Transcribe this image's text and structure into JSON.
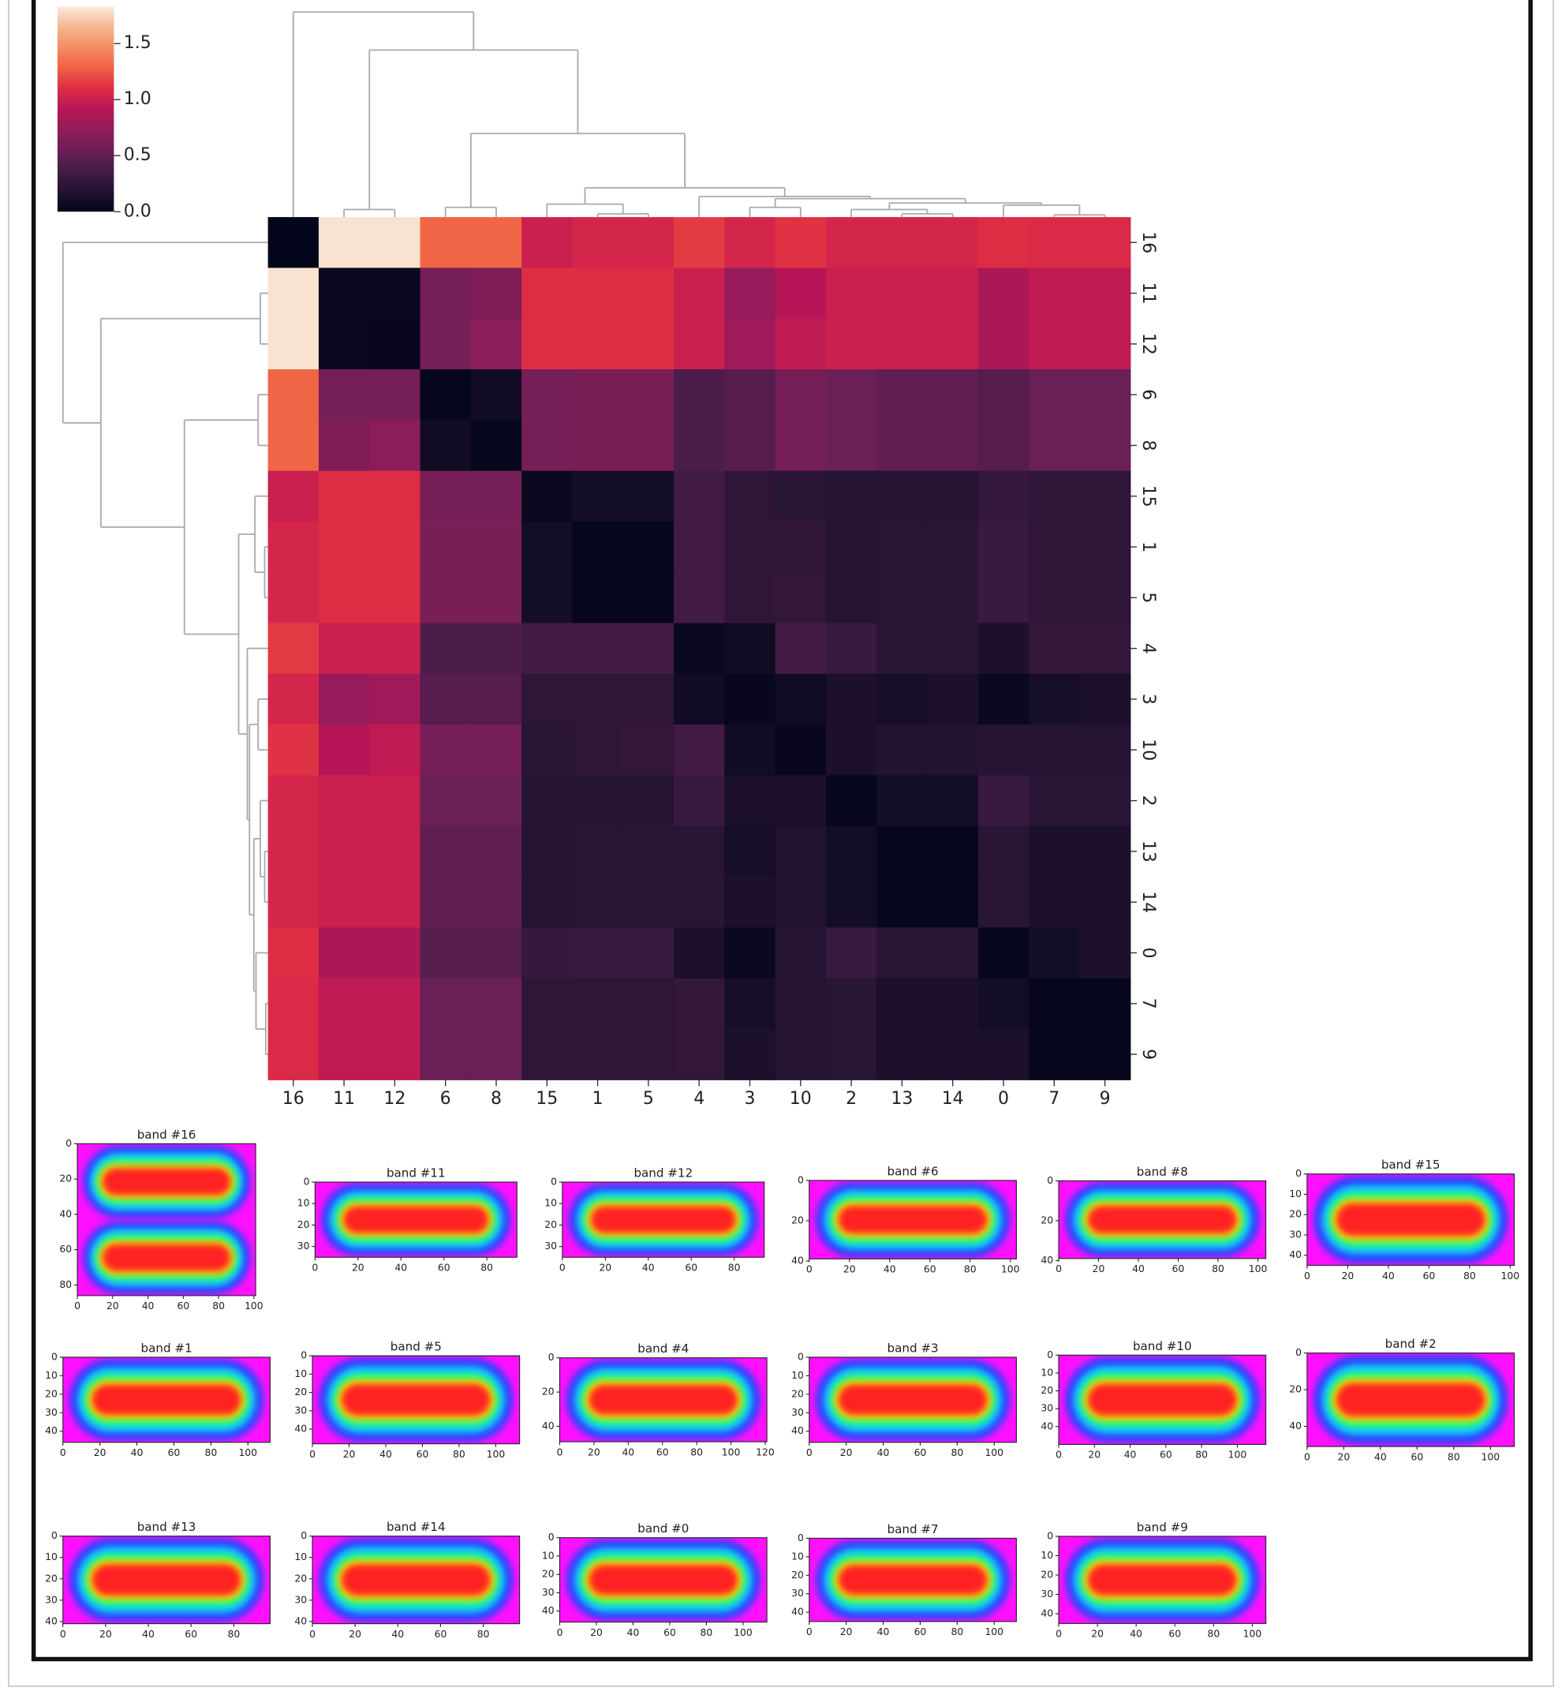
{
  "chart_data": [
    {
      "type": "heatmap",
      "colormap": "rocket",
      "row_labels": [
        "16",
        "11",
        "12",
        "6",
        "8",
        "15",
        "1",
        "5",
        "4",
        "3",
        "10",
        "2",
        "13",
        "14",
        "0",
        "7",
        "9"
      ],
      "col_labels": [
        "16",
        "11",
        "12",
        "6",
        "8",
        "15",
        "1",
        "5",
        "4",
        "3",
        "10",
        "2",
        "13",
        "14",
        "0",
        "7",
        "9"
      ],
      "values": [
        [
          0.0,
          1.8,
          1.8,
          1.3,
          1.3,
          1.0,
          1.05,
          1.05,
          1.15,
          1.05,
          1.12,
          1.05,
          1.05,
          1.05,
          1.1,
          1.08,
          1.08
        ],
        [
          1.8,
          0.05,
          0.05,
          0.6,
          0.65,
          1.1,
          1.1,
          1.1,
          1.0,
          0.75,
          0.9,
          1.0,
          1.0,
          1.0,
          0.85,
          0.95,
          0.95
        ],
        [
          1.8,
          0.05,
          0.03,
          0.6,
          0.7,
          1.1,
          1.1,
          1.1,
          1.0,
          0.8,
          0.95,
          1.0,
          1.0,
          1.0,
          0.85,
          0.95,
          0.95
        ],
        [
          1.3,
          0.6,
          0.6,
          0.02,
          0.08,
          0.6,
          0.62,
          0.62,
          0.4,
          0.45,
          0.6,
          0.55,
          0.5,
          0.5,
          0.45,
          0.55,
          0.55
        ],
        [
          1.3,
          0.65,
          0.7,
          0.08,
          0.02,
          0.6,
          0.62,
          0.62,
          0.4,
          0.45,
          0.6,
          0.55,
          0.5,
          0.5,
          0.45,
          0.55,
          0.55
        ],
        [
          1.0,
          1.1,
          1.1,
          0.6,
          0.6,
          0.05,
          0.1,
          0.1,
          0.35,
          0.25,
          0.22,
          0.2,
          0.2,
          0.2,
          0.28,
          0.25,
          0.25
        ],
        [
          1.05,
          1.1,
          1.1,
          0.62,
          0.62,
          0.1,
          0.02,
          0.02,
          0.35,
          0.25,
          0.25,
          0.2,
          0.22,
          0.22,
          0.3,
          0.25,
          0.25
        ],
        [
          1.05,
          1.1,
          1.1,
          0.62,
          0.62,
          0.1,
          0.02,
          0.02,
          0.35,
          0.25,
          0.27,
          0.2,
          0.22,
          0.22,
          0.3,
          0.25,
          0.25
        ],
        [
          1.15,
          1.0,
          1.0,
          0.4,
          0.4,
          0.35,
          0.35,
          0.35,
          0.05,
          0.08,
          0.35,
          0.3,
          0.22,
          0.22,
          0.15,
          0.27,
          0.27
        ],
        [
          1.05,
          0.75,
          0.8,
          0.45,
          0.45,
          0.25,
          0.25,
          0.25,
          0.08,
          0.03,
          0.08,
          0.15,
          0.12,
          0.15,
          0.05,
          0.12,
          0.15
        ],
        [
          1.12,
          0.9,
          0.95,
          0.6,
          0.6,
          0.22,
          0.25,
          0.27,
          0.35,
          0.08,
          0.03,
          0.15,
          0.18,
          0.18,
          0.2,
          0.2,
          0.2
        ],
        [
          1.05,
          1.0,
          1.0,
          0.55,
          0.55,
          0.2,
          0.2,
          0.2,
          0.3,
          0.15,
          0.15,
          0.02,
          0.1,
          0.1,
          0.3,
          0.22,
          0.22
        ],
        [
          1.05,
          1.0,
          1.0,
          0.5,
          0.5,
          0.2,
          0.22,
          0.22,
          0.22,
          0.12,
          0.18,
          0.1,
          0.02,
          0.02,
          0.22,
          0.15,
          0.15
        ],
        [
          1.05,
          1.0,
          1.0,
          0.5,
          0.5,
          0.2,
          0.22,
          0.22,
          0.22,
          0.15,
          0.18,
          0.1,
          0.02,
          0.02,
          0.22,
          0.15,
          0.15
        ],
        [
          1.1,
          0.85,
          0.85,
          0.45,
          0.45,
          0.28,
          0.3,
          0.3,
          0.15,
          0.05,
          0.2,
          0.3,
          0.22,
          0.22,
          0.02,
          0.1,
          0.15
        ],
        [
          1.08,
          0.95,
          0.95,
          0.55,
          0.55,
          0.25,
          0.25,
          0.25,
          0.27,
          0.12,
          0.2,
          0.22,
          0.15,
          0.15,
          0.1,
          0.02,
          0.02
        ],
        [
          1.08,
          0.95,
          0.95,
          0.55,
          0.55,
          0.25,
          0.25,
          0.25,
          0.27,
          0.15,
          0.2,
          0.22,
          0.15,
          0.15,
          0.15,
          0.02,
          0.02
        ]
      ],
      "colorbar": {
        "ylim": [
          0,
          1.83
        ],
        "yticks": [
          {
            "value": 0,
            "label": "0.0"
          },
          {
            "value": 0.5,
            "label": "0.5"
          },
          {
            "value": 1,
            "label": "1.0"
          },
          {
            "value": 1.5,
            "label": "1.5"
          }
        ]
      }
    },
    {
      "type": "image",
      "title": "band #16",
      "xlim": [
        0,
        101
      ],
      "ylim": [
        86,
        0
      ],
      "xticks": [
        0,
        20,
        40,
        60,
        80,
        100
      ],
      "yticks": [
        0,
        20,
        40,
        60,
        80
      ]
    },
    {
      "type": "image",
      "title": "band #11",
      "xlim": [
        0,
        94
      ],
      "ylim": [
        35,
        0
      ],
      "xticks": [
        0,
        20,
        40,
        60,
        80
      ],
      "yticks": [
        0,
        10,
        20,
        30
      ]
    },
    {
      "type": "image",
      "title": "band #12",
      "xlim": [
        0,
        94
      ],
      "ylim": [
        35,
        0
      ],
      "xticks": [
        0,
        20,
        40,
        60,
        80
      ],
      "yticks": [
        0,
        10,
        20,
        30
      ]
    },
    {
      "type": "image",
      "title": "band #6",
      "xlim": [
        0,
        103
      ],
      "ylim": [
        39,
        0
      ],
      "xticks": [
        0,
        20,
        40,
        60,
        80,
        100
      ],
      "yticks": [
        0,
        20,
        40
      ]
    },
    {
      "type": "image",
      "title": "band #8",
      "xlim": [
        0,
        104
      ],
      "ylim": [
        39,
        0
      ],
      "xticks": [
        0,
        20,
        40,
        60,
        80,
        100
      ],
      "yticks": [
        0,
        20,
        40
      ]
    },
    {
      "type": "image",
      "title": "band #15",
      "xlim": [
        0,
        102
      ],
      "ylim": [
        45,
        0
      ],
      "xticks": [
        0,
        20,
        40,
        60,
        80,
        100
      ],
      "yticks": [
        0,
        10,
        20,
        30,
        40
      ]
    },
    {
      "type": "image",
      "title": "band #1",
      "xlim": [
        0,
        112
      ],
      "ylim": [
        46,
        0
      ],
      "xticks": [
        0,
        20,
        40,
        60,
        80,
        100
      ],
      "yticks": [
        0,
        10,
        20,
        30,
        40
      ]
    },
    {
      "type": "image",
      "title": "band #5",
      "xlim": [
        0,
        113
      ],
      "ylim": [
        48,
        0
      ],
      "xticks": [
        0,
        20,
        40,
        60,
        80,
        100
      ],
      "yticks": [
        0,
        10,
        20,
        30,
        40
      ]
    },
    {
      "type": "image",
      "title": "band #4",
      "xlim": [
        0,
        121
      ],
      "ylim": [
        49,
        0
      ],
      "xticks": [
        0,
        20,
        40,
        60,
        80,
        100,
        120
      ],
      "yticks": [
        0,
        20,
        40
      ]
    },
    {
      "type": "image",
      "title": "band #3",
      "xlim": [
        0,
        112
      ],
      "ylim": [
        46,
        0
      ],
      "xticks": [
        0,
        20,
        40,
        60,
        80,
        100
      ],
      "yticks": [
        0,
        10,
        20,
        30,
        40
      ]
    },
    {
      "type": "image",
      "title": "band #10",
      "xlim": [
        0,
        116
      ],
      "ylim": [
        50,
        0
      ],
      "xticks": [
        0,
        20,
        40,
        60,
        80,
        100
      ],
      "yticks": [
        0,
        10,
        20,
        30,
        40
      ]
    },
    {
      "type": "image",
      "title": "band #2",
      "xlim": [
        0,
        113
      ],
      "ylim": [
        51,
        0
      ],
      "xticks": [
        0,
        20,
        40,
        60,
        80,
        100
      ],
      "yticks": [
        0,
        20,
        40
      ]
    },
    {
      "type": "image",
      "title": "band #13",
      "xlim": [
        0,
        97
      ],
      "ylim": [
        41,
        0
      ],
      "xticks": [
        0,
        20,
        40,
        60,
        80
      ],
      "yticks": [
        0,
        10,
        20,
        30,
        40
      ]
    },
    {
      "type": "image",
      "title": "band #14",
      "xlim": [
        0,
        97
      ],
      "ylim": [
        41,
        0
      ],
      "xticks": [
        0,
        20,
        40,
        60,
        80
      ],
      "yticks": [
        0,
        10,
        20,
        30,
        40
      ]
    },
    {
      "type": "image",
      "title": "band #0",
      "xlim": [
        0,
        113
      ],
      "ylim": [
        46,
        0
      ],
      "xticks": [
        0,
        20,
        40,
        60,
        80,
        100
      ],
      "yticks": [
        0,
        10,
        20,
        30,
        40
      ]
    },
    {
      "type": "image",
      "title": "band #7",
      "xlim": [
        0,
        112
      ],
      "ylim": [
        45,
        0
      ],
      "xticks": [
        0,
        20,
        40,
        60,
        80,
        100
      ],
      "yticks": [
        0,
        10,
        20,
        30,
        40
      ]
    },
    {
      "type": "image",
      "title": "band #9",
      "xlim": [
        0,
        107
      ],
      "ylim": [
        45,
        0
      ],
      "xticks": [
        0,
        20,
        40,
        60,
        80,
        100
      ],
      "yticks": [
        0,
        10,
        20,
        30,
        40
      ]
    }
  ]
}
